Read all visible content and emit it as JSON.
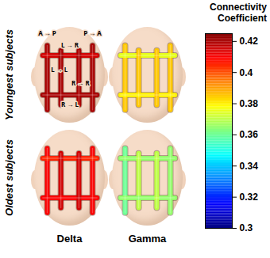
{
  "chart_data": {
    "type": "connectivity_map",
    "title": "Connectivity Coefficient",
    "connections": [
      "A → P",
      "P → A",
      "L → R",
      "L → L",
      "R → L",
      "R → R"
    ],
    "rows": [
      "Youngest subjects",
      "Oldest subjects"
    ],
    "columns": [
      "Delta",
      "Gamma"
    ],
    "panels": [
      {
        "row": "Youngest subjects",
        "column": "Delta",
        "values": [
          0.42,
          0.42,
          0.415,
          0.42,
          0.42,
          0.42
        ]
      },
      {
        "row": "Youngest subjects",
        "column": "Gamma",
        "values": [
          0.385,
          0.385,
          0.375,
          0.385,
          0.38,
          0.385
        ]
      },
      {
        "row": "Oldest subjects",
        "column": "Delta",
        "values": [
          0.41,
          0.41,
          0.405,
          0.415,
          0.41,
          0.415
        ]
      },
      {
        "row": "Oldest subjects",
        "column": "Gamma",
        "values": [
          0.36,
          0.365,
          0.365,
          0.37,
          0.365,
          0.37
        ]
      }
    ],
    "colorbar": {
      "lim": [
        0.3,
        0.425
      ],
      "ticks": [
        0.3,
        0.32,
        0.34,
        0.36,
        0.38,
        0.4,
        0.42
      ]
    }
  }
}
